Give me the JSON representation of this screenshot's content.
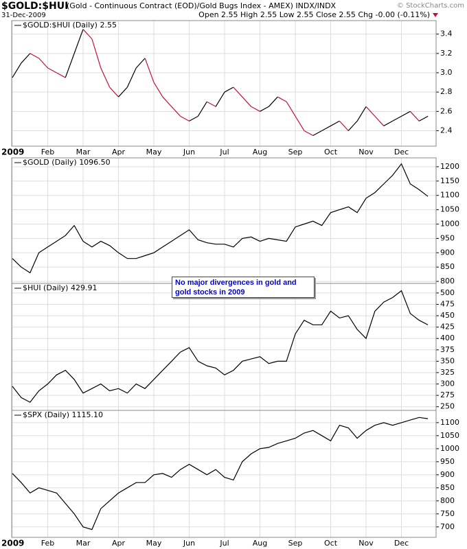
{
  "header": {
    "symbol": "$GOLD:$HUI",
    "description": "(Gold - Continuous Contract (EOD)/Gold Bugs Index - AMEX) INDX/INDX",
    "date": "31-Dec-2009",
    "quote": "Open 2.55  High 2.55  Low 2.55  Close 2.55  Chg -0.00 (-0.11%)",
    "watermark": "© StockCharts.com"
  },
  "annotation": "No major divergences in gold and gold stocks in 2009",
  "chart_data": [
    {
      "type": "line",
      "title": "$GOLD:$HUI (Daily) 2.55",
      "up_color": "#000000",
      "down_color": "#c8102e",
      "grid": true,
      "categories": [
        "2009",
        null,
        null,
        null,
        "Feb",
        null,
        null,
        null,
        "Mar",
        null,
        null,
        null,
        "Apr",
        null,
        null,
        null,
        "May",
        null,
        null,
        null,
        "Jun",
        null,
        null,
        null,
        "Jul",
        null,
        null,
        null,
        "Aug",
        null,
        null,
        null,
        "Sep",
        null,
        null,
        null,
        "Oct",
        null,
        null,
        null,
        "Nov",
        null,
        null,
        null,
        "Dec",
        null,
        null,
        null
      ],
      "values": [
        2.95,
        3.1,
        3.2,
        3.15,
        3.05,
        3.0,
        2.95,
        3.2,
        3.45,
        3.35,
        3.05,
        2.85,
        2.75,
        2.85,
        3.05,
        3.15,
        2.9,
        2.75,
        2.65,
        2.55,
        2.5,
        2.55,
        2.7,
        2.65,
        2.8,
        2.85,
        2.75,
        2.65,
        2.6,
        2.65,
        2.75,
        2.7,
        2.55,
        2.4,
        2.35,
        2.4,
        2.45,
        2.5,
        2.4,
        2.5,
        2.65,
        2.55,
        2.45,
        2.5,
        2.55,
        2.6,
        2.5,
        2.55
      ],
      "ylim": [
        2.24,
        3.54
      ],
      "yticks": [
        2.4,
        2.6,
        2.8,
        {
          "value": 3,
          "label": "3.0"
        },
        3.2,
        3.4
      ]
    },
    {
      "type": "line",
      "title": "$GOLD (Daily) 1096.50",
      "color": "#000000",
      "grid": true,
      "values": [
        880,
        850,
        830,
        900,
        920,
        940,
        960,
        995,
        940,
        920,
        940,
        925,
        900,
        880,
        880,
        890,
        900,
        920,
        940,
        960,
        980,
        945,
        935,
        930,
        930,
        920,
        950,
        955,
        940,
        950,
        945,
        940,
        990,
        1000,
        1010,
        995,
        1040,
        1050,
        1060,
        1040,
        1090,
        1110,
        1140,
        1170,
        1210,
        1140,
        1120,
        1096.5
      ],
      "ylim": [
        793,
        1231
      ],
      "yticks": [
        800,
        850,
        900,
        950,
        1000,
        1050,
        1100,
        1150,
        1200
      ]
    },
    {
      "type": "line",
      "title": "$HUI (Daily) 429.91",
      "color": "#000000",
      "grid": true,
      "values": [
        295,
        270,
        260,
        285,
        300,
        320,
        330,
        310,
        280,
        290,
        300,
        285,
        290,
        280,
        300,
        290,
        310,
        330,
        350,
        370,
        380,
        350,
        340,
        335,
        320,
        330,
        350,
        355,
        360,
        345,
        350,
        350,
        410,
        440,
        430,
        430,
        460,
        445,
        450,
        420,
        400,
        460,
        480,
        490,
        505,
        455,
        440,
        429.91
      ],
      "ylim": [
        242,
        521
      ],
      "yticks": [
        250,
        275,
        300,
        325,
        350,
        375,
        400,
        425,
        450,
        475,
        500
      ]
    },
    {
      "type": "line",
      "title": "$SPX (Daily) 1115.10",
      "color": "#000000",
      "grid": true,
      "categories": [
        "2009",
        null,
        null,
        null,
        "Feb",
        null,
        null,
        null,
        "Mar",
        null,
        null,
        null,
        "Apr",
        null,
        null,
        null,
        "May",
        null,
        null,
        null,
        "Jun",
        null,
        null,
        null,
        "Jul",
        null,
        null,
        null,
        "Aug",
        null,
        null,
        null,
        "Sep",
        null,
        null,
        null,
        "Oct",
        null,
        null,
        null,
        "Nov",
        null,
        null,
        null,
        "Dec",
        null,
        null,
        null
      ],
      "values": [
        905,
        870,
        830,
        850,
        840,
        830,
        790,
        750,
        700,
        690,
        770,
        800,
        830,
        850,
        870,
        870,
        900,
        905,
        890,
        920,
        940,
        920,
        900,
        920,
        890,
        880,
        950,
        980,
        1000,
        1005,
        1020,
        1030,
        1040,
        1060,
        1070,
        1050,
        1030,
        1090,
        1080,
        1040,
        1070,
        1090,
        1100,
        1090,
        1100,
        1110,
        1120,
        1115.1
      ],
      "ylim": [
        660,
        1147
      ],
      "yticks": [
        700,
        750,
        800,
        850,
        900,
        950,
        1000,
        1050,
        1100
      ]
    }
  ]
}
